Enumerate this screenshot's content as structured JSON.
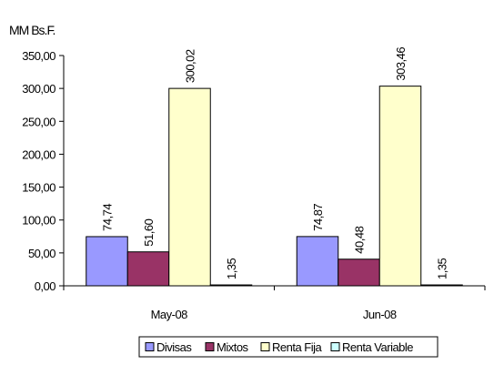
{
  "chart_data": {
    "type": "bar",
    "unit_label": "MM Bs.F.",
    "categories": [
      "May-08",
      "Jun-08"
    ],
    "series": [
      {
        "name": "Divisas",
        "values": [
          74.74,
          74.87
        ],
        "labels": [
          "74,74",
          "74,87"
        ],
        "color": "#9999ff"
      },
      {
        "name": "Mixtos",
        "values": [
          51.6,
          40.48
        ],
        "labels": [
          "51,60",
          "40,48"
        ],
        "color": "#993366"
      },
      {
        "name": "Renta Fija",
        "values": [
          300.02,
          303.46
        ],
        "labels": [
          "300,02",
          "303,46"
        ],
        "color": "#ffffcc"
      },
      {
        "name": "Renta Variable",
        "values": [
          1.35,
          1.35
        ],
        "labels": [
          "1,35",
          "1,35"
        ],
        "color": "#ccffff"
      }
    ],
    "ylim": [
      0,
      350
    ],
    "yticks": [
      {
        "value": 0,
        "label": "0,00"
      },
      {
        "value": 50,
        "label": "50,00"
      },
      {
        "value": 100,
        "label": "100,00"
      },
      {
        "value": 150,
        "label": "150,00"
      },
      {
        "value": 200,
        "label": "200,00"
      },
      {
        "value": 250,
        "label": "250,00"
      },
      {
        "value": 300,
        "label": "300,00"
      },
      {
        "value": 350,
        "label": "350,00"
      }
    ],
    "grid": false,
    "legend_position": "bottom",
    "data_label_rotation": "vertical"
  }
}
